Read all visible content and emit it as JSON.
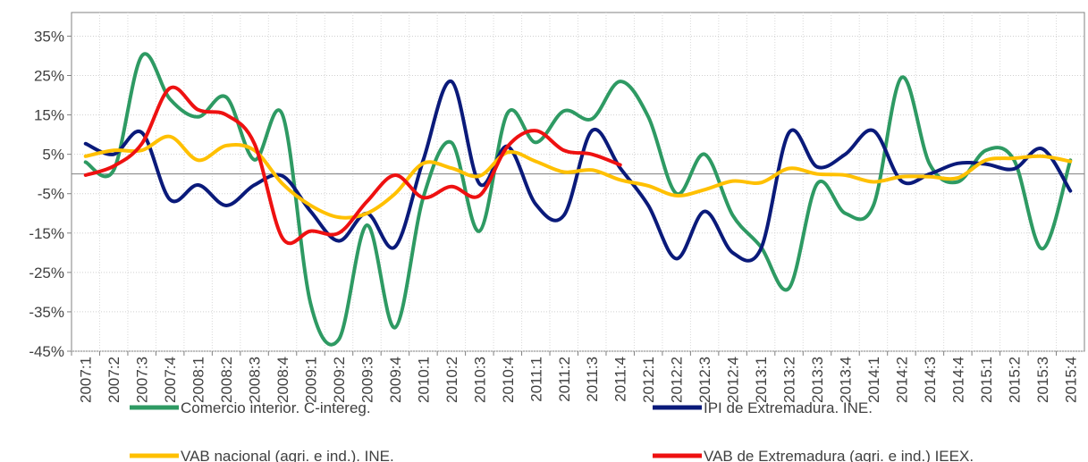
{
  "chart_data": {
    "type": "line",
    "categories": [
      "2007:1",
      "2007:2",
      "2007:3",
      "2007:4",
      "2008:1",
      "2008:2",
      "2008:3",
      "2008:4",
      "2009:1",
      "2009:2",
      "2009:3",
      "2009:4",
      "2010:1",
      "2010:2",
      "2010:3",
      "2010:4",
      "2011:1",
      "2011:2",
      "2011:3",
      "2011:4",
      "2012:1",
      "2012:2",
      "2012:3",
      "2012:4",
      "2013:1",
      "2013:2",
      "2013:3",
      "2013:4",
      "2014:1",
      "2014:2",
      "2014:3",
      "2014:4",
      "2015:1",
      "2015:2",
      "2015:3",
      "2015:4"
    ],
    "series": [
      {
        "name": "Comercio interior. C-intereg.",
        "color": "#2e9a63",
        "values": [
          3,
          1,
          30,
          19,
          14.5,
          19.5,
          3.6,
          15,
          -33,
          -42,
          -13,
          -39,
          -6,
          8,
          -14.5,
          15.5,
          8,
          16,
          14,
          23.5,
          14.5,
          -5,
          5,
          -10.5,
          -18.5,
          -29,
          -2.5,
          -10,
          -8,
          24.5,
          2.5,
          -2,
          6,
          3.5,
          -19,
          3.5
        ]
      },
      {
        "name": "IPI de Extremadura. INE.",
        "color": "#0a1a7a",
        "values": [
          7.7,
          5,
          10.5,
          -6.5,
          -2.8,
          -8,
          -2.8,
          -0.5,
          -9.5,
          -17,
          -10,
          -18.5,
          3.5,
          23.5,
          -2.5,
          7,
          -7.7,
          -10.5,
          11,
          1.5,
          -8,
          -21.5,
          -9.5,
          -20,
          -19,
          10.5,
          1.8,
          5,
          11,
          -1.8,
          0,
          2.7,
          2.5,
          1.3,
          6.4,
          -4.3
        ]
      },
      {
        "name": "VAB nacional (agri. e ind.). INE.",
        "color": "#ffc000",
        "values": [
          4.5,
          6,
          6,
          9.5,
          3.5,
          7.2,
          6,
          -2.5,
          -8,
          -11,
          -10,
          -5,
          2.7,
          1.5,
          -0.5,
          5.5,
          3.2,
          0.5,
          1,
          -1.5,
          -3,
          -5.5,
          -4,
          -1.8,
          -2.2,
          1.4,
          0,
          -0.3,
          -2,
          -0.7,
          -0.7,
          -1,
          3.5,
          4,
          4.5,
          3.2
        ]
      },
      {
        "name": "VAB de Extremadura (agri. e ind.) IEEX.",
        "color": "#ee1111",
        "values": [
          -0.3,
          2,
          7.7,
          21.8,
          16.3,
          15,
          7.7,
          -16.3,
          -14.5,
          -15,
          -7,
          -0.3,
          -6,
          -3.2,
          -5.5,
          7,
          11,
          6,
          5,
          2.3,
          null,
          null,
          null,
          null,
          null,
          null,
          null,
          null,
          null,
          null,
          null,
          null,
          null,
          null,
          null,
          null
        ]
      }
    ],
    "ylim": [
      -45,
      41
    ],
    "yticks": [
      {
        "value": -45,
        "label": "-45%"
      },
      {
        "value": -35,
        "label": "-35%"
      },
      {
        "value": -25,
        "label": "-25%"
      },
      {
        "value": -15,
        "label": "-15%"
      },
      {
        "value": -5,
        "label": "-5%"
      },
      {
        "value": 5,
        "label": "5%"
      },
      {
        "value": 15,
        "label": "15%"
      },
      {
        "value": 25,
        "label": "25%"
      },
      {
        "value": 35,
        "label": "35%"
      }
    ],
    "grid": true
  }
}
